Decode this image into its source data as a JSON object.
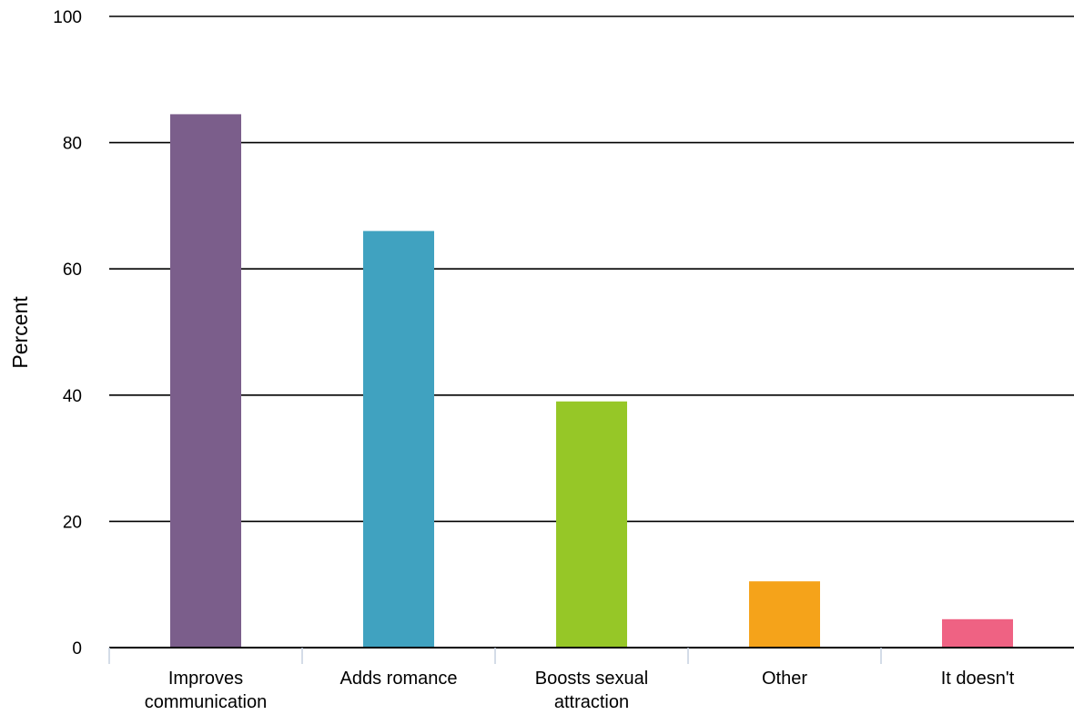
{
  "chart_data": {
    "type": "bar",
    "title": "",
    "xlabel": "",
    "ylabel": "Percent",
    "ylim": [
      0,
      100
    ],
    "yticks": [
      0,
      20,
      40,
      60,
      80,
      100
    ],
    "grid": true,
    "legend": "none",
    "categories": [
      [
        "Improves",
        "communication"
      ],
      [
        "Adds romance"
      ],
      [
        "Boosts sexual",
        "attraction"
      ],
      [
        "Other"
      ],
      [
        "It doesn't"
      ]
    ],
    "values": [
      84.5,
      66,
      39,
      10.5,
      4.5
    ],
    "colors": [
      "#7b5e8b",
      "#40a2c0",
      "#96c727",
      "#f5a31a",
      "#ef6283"
    ]
  }
}
